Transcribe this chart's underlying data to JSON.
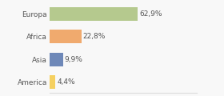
{
  "categories": [
    "Europa",
    "Africa",
    "Asia",
    "America"
  ],
  "values": [
    62.9,
    22.8,
    9.9,
    4.4
  ],
  "labels": [
    "62,9%",
    "22,8%",
    "9,9%",
    "4,4%"
  ],
  "bar_colors": [
    "#b5c98e",
    "#f0aa6e",
    "#6e88b8",
    "#f5d060"
  ],
  "background_color": "#f8f8f8",
  "xlim": [
    0,
    105
  ],
  "bar_height": 0.6,
  "label_fontsize": 6.5,
  "category_fontsize": 6.5,
  "grid_color": "#dddddd",
  "text_color": "#555555"
}
